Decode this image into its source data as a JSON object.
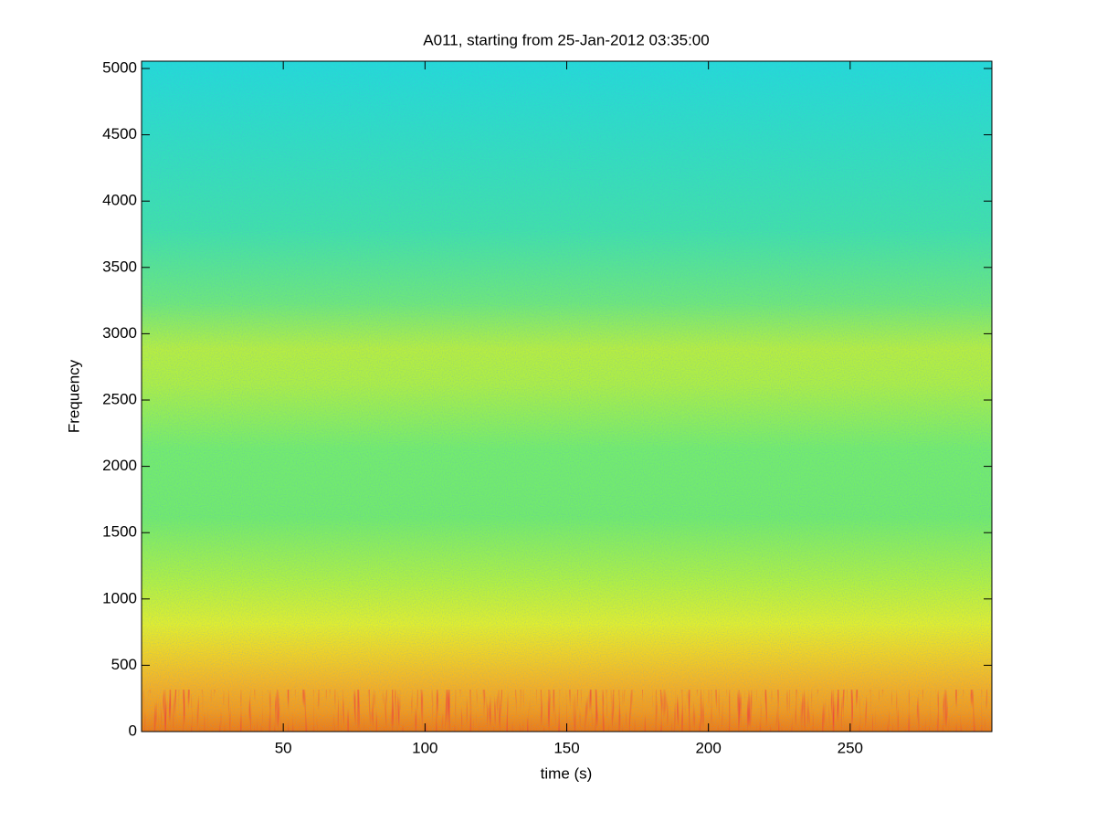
{
  "chart_data": {
    "type": "spectrogram",
    "title": "A011, starting from 25-Jan-2012 03:35:00",
    "xlabel": "time (s)",
    "ylabel": "Frequency",
    "xlim": [
      0,
      300
    ],
    "xticks": [
      50,
      100,
      150,
      200,
      250
    ],
    "ylim": [
      0,
      5055
    ],
    "yticks": [
      0,
      500,
      1000,
      1500,
      2000,
      2500,
      3000,
      3500,
      4000,
      4500,
      5000
    ],
    "grid": false
  }
}
